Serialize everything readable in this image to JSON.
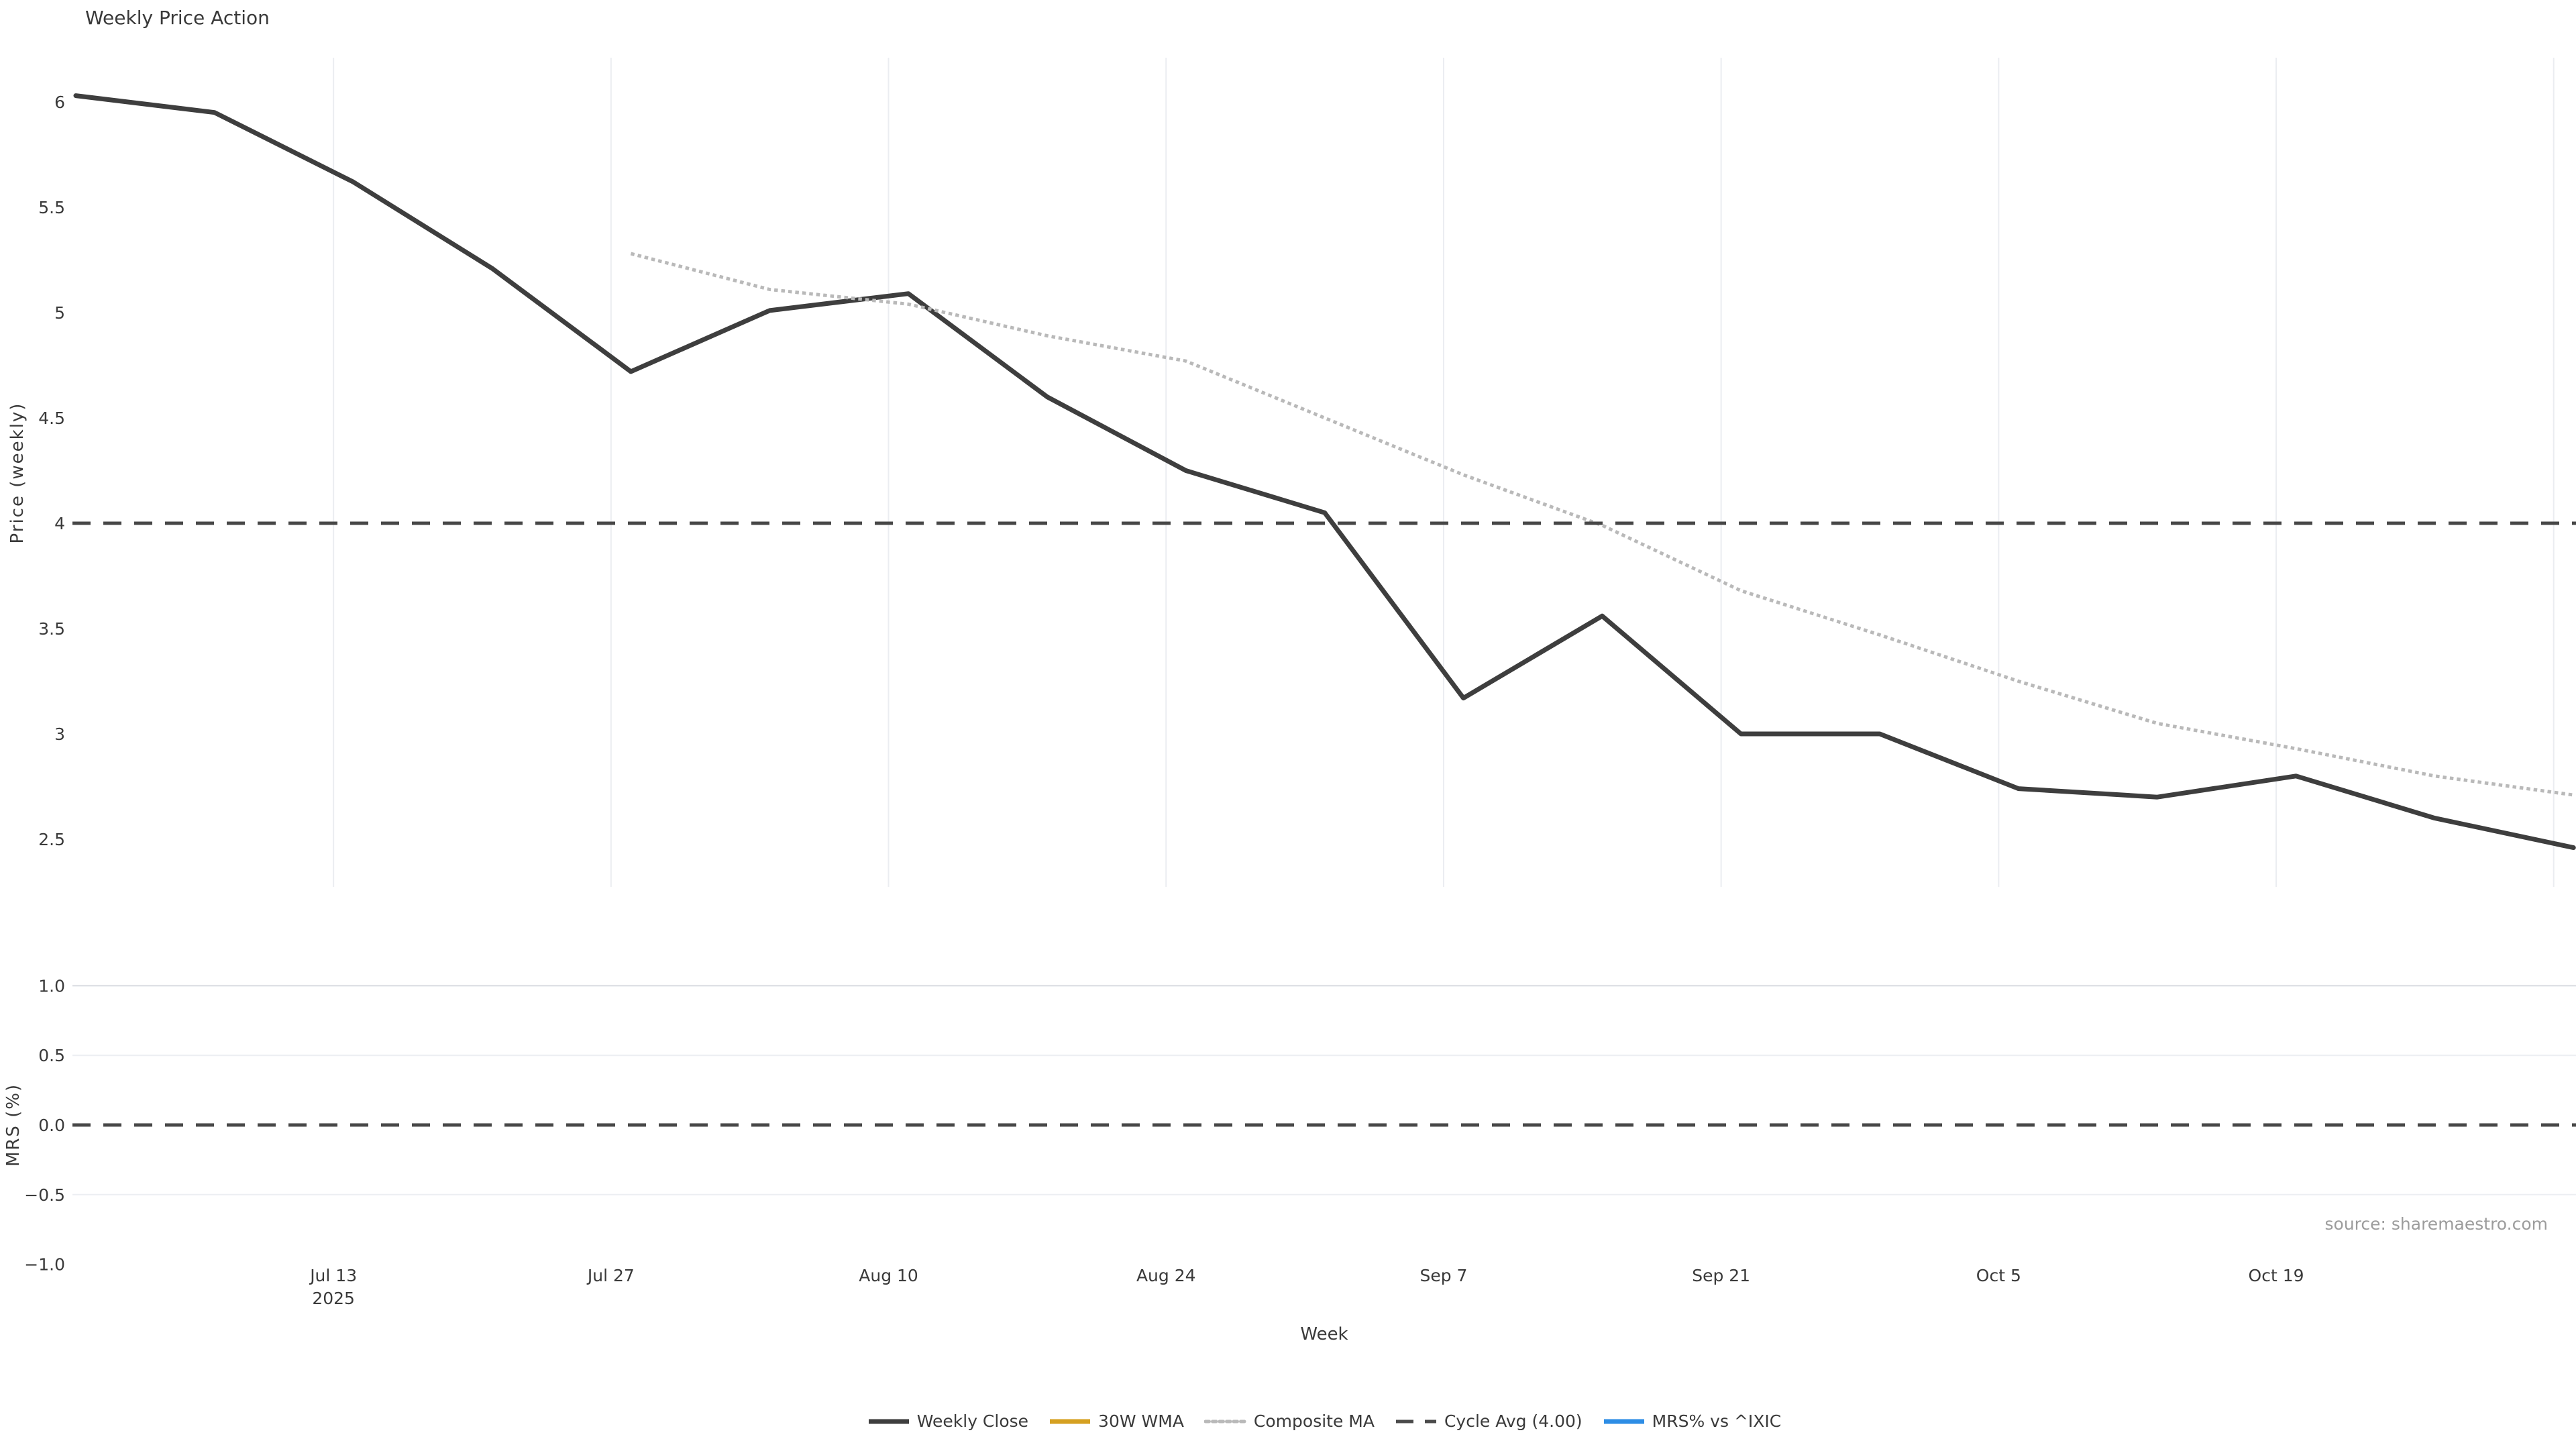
{
  "title": "Weekly Price Action",
  "source_credit": "source: sharemaestro.com",
  "legend": {
    "items": [
      {
        "label": "Weekly Close",
        "color": "#3e3e3e",
        "style": "solid"
      },
      {
        "label": "30W WMA",
        "color": "#d5a021",
        "style": "solid"
      },
      {
        "label": "Composite MA",
        "color": "#b9b9b9",
        "style": "dotted"
      },
      {
        "label": "Cycle Avg (4.00)",
        "color": "#4a4a4a",
        "style": "dashed"
      },
      {
        "label": "MRS% vs ^IXIC",
        "color": "#2d8de5",
        "style": "solid"
      }
    ]
  },
  "chart_data": {
    "type": "line",
    "title": "Weekly Price Action",
    "xlabel": "Week",
    "xlim": [
      "2025-06-30",
      "2025-11-03"
    ],
    "x": [
      "Jun 30",
      "Jul 7",
      "Jul 14",
      "Jul 21",
      "Jul 28",
      "Aug 4",
      "Aug 11",
      "Aug 18",
      "Aug 25",
      "Sep 1",
      "Sep 8",
      "Sep 15",
      "Sep 22",
      "Sep 29",
      "Oct 6",
      "Oct 13",
      "Oct 20",
      "Oct 27",
      "Nov 3"
    ],
    "xticks": [
      {
        "label": "Jul 13",
        "sublabel": "2025",
        "day": 13
      },
      {
        "label": "Jul 27",
        "day": 27
      },
      {
        "label": "Aug 10",
        "day": 41
      },
      {
        "label": "Aug 24",
        "day": 55
      },
      {
        "label": "Sep 7",
        "day": 69
      },
      {
        "label": "Sep 21",
        "day": 83
      },
      {
        "label": "Oct 5",
        "day": 97
      },
      {
        "label": "Oct 19",
        "day": 111
      },
      {
        "label": "",
        "day": 125
      }
    ],
    "panels": [
      {
        "ylabel": "Price (weekly)",
        "ylim": [
          2.27,
          6.21
        ],
        "grid": "vertical-only",
        "yticks": [
          {
            "label": "6",
            "v": 6.0
          },
          {
            "label": "5.5",
            "v": 5.5
          },
          {
            "label": "5",
            "v": 5.0
          },
          {
            "label": "4.5",
            "v": 4.5
          },
          {
            "label": "4",
            "v": 4.0
          },
          {
            "label": "3.5",
            "v": 3.5
          },
          {
            "label": "3",
            "v": 3.0
          },
          {
            "label": "2.5",
            "v": 2.5
          }
        ],
        "series": [
          {
            "name": "Weekly Close",
            "color": "#3e3e3e",
            "dash": "solid",
            "width": 7,
            "start_index": 0,
            "values": [
              6.03,
              5.95,
              5.62,
              5.21,
              4.72,
              5.01,
              5.09,
              4.6,
              4.25,
              4.05,
              3.17,
              3.56,
              3.0,
              3.0,
              2.74,
              2.7,
              2.8,
              2.6,
              2.46
            ]
          },
          {
            "name": "Composite MA",
            "color": "#b9b9b9",
            "dash": "dot",
            "width": 5,
            "start_index": 4,
            "values": [
              5.28,
              5.11,
              5.04,
              4.89,
              4.77,
              4.5,
              4.23,
              3.99,
              3.68,
              3.47,
              3.25,
              3.05,
              2.93,
              2.8,
              2.71
            ]
          },
          {
            "name": "30W WMA",
            "color": "#d5a021",
            "dash": "solid",
            "width": 7,
            "start_index": 0,
            "values": []
          },
          {
            "name": "Cycle Avg (4.00)",
            "type": "hline",
            "value": 4.0,
            "color": "#474747",
            "dash": "dash",
            "width": 5
          }
        ]
      },
      {
        "ylabel": "MRS (%)",
        "ylim": [
          -1.06,
          1.07
        ],
        "grid": "horizontal-only",
        "yticks": [
          {
            "label": "1.0",
            "v": 1.0
          },
          {
            "label": "0.5",
            "v": 0.5
          },
          {
            "label": "0.0",
            "v": 0.0
          },
          {
            "label": "−0.5",
            "v": -0.5
          },
          {
            "label": "−1.0",
            "v": -1.0
          }
        ],
        "series": [
          {
            "name": "MRS% vs ^IXIC",
            "color": "#2d8de5",
            "dash": "solid",
            "width": 5,
            "start_index": 0,
            "values": []
          },
          {
            "type": "hline",
            "value": 0.0,
            "color": "#474747",
            "dash": "dash",
            "width": 5
          }
        ]
      }
    ]
  }
}
